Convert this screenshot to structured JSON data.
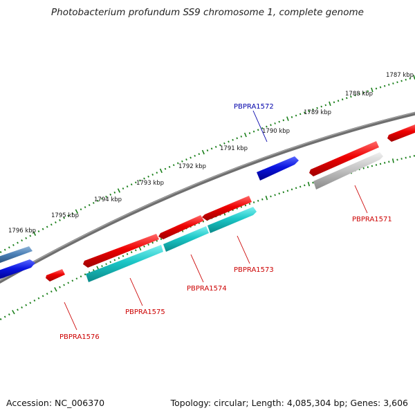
{
  "title": "Photobacterium profundum SS9 chromosome 1, complete genome",
  "footer": {
    "accession": "Accession: NC_006370",
    "summary": "Topology: circular; Length: 4,085,304 bp; Genes: 3,606"
  },
  "colors": {
    "backbone": "#777777",
    "tick": "#1a7f1a",
    "gene_red": "#e00000",
    "gene_blue": "#0a14e0",
    "gene_cyan": "#1cc7c7",
    "gene_grey": "#c4c4c4",
    "gene_steel": "#4a7fb5",
    "label_red": "#cc0000",
    "label_blue": "#0000aa"
  },
  "scale_labels": [
    "1787 kbp",
    "1788 kbp",
    "1789 kbp",
    "1790 kbp",
    "1791 kbp",
    "1792 kbp",
    "1793 kbp",
    "1794 kbp",
    "1795 kbp",
    "1796 kbp"
  ],
  "gene_labels": [
    {
      "name": "PBPRA1572",
      "color": "blue"
    },
    {
      "name": "PBPRA1571",
      "color": "red"
    },
    {
      "name": "PBPRA1573",
      "color": "red"
    },
    {
      "name": "PBPRA1574",
      "color": "red"
    },
    {
      "name": "PBPRA1575",
      "color": "red"
    },
    {
      "name": "PBPRA1576",
      "color": "red"
    }
  ]
}
